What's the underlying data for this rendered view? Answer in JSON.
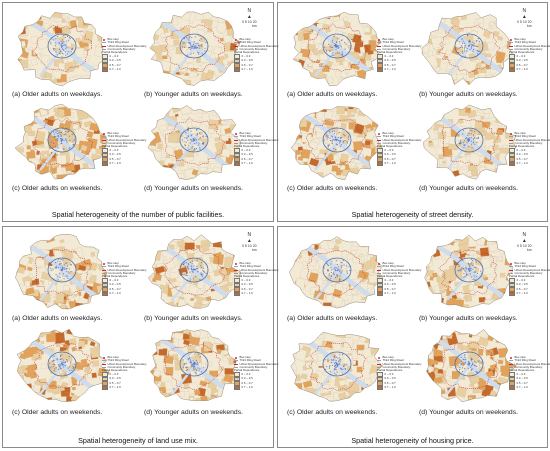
{
  "figures": [
    {
      "caption": "Spatial heterogeneity of the number of public facilities.",
      "panels": [
        {
          "label": "(a)  Older adults on weekdays.",
          "tone": "light"
        },
        {
          "label": "(b)  Younger adults on weekdays.",
          "tone": "light"
        },
        {
          "label": "(c)  Older adults on weekends.",
          "tone": "heavy"
        },
        {
          "label": "(d)  Younger adults on weekends.",
          "tone": "light"
        }
      ]
    },
    {
      "caption": "Spatial heterogeneity of street density.",
      "panels": [
        {
          "label": "(a)  Older adults on weekdays.",
          "tone": "medium"
        },
        {
          "label": "(b)  Younger adults on weekdays.",
          "tone": "light"
        },
        {
          "label": "(c)  Older adults on weekends.",
          "tone": "medium"
        },
        {
          "label": "(d)  Younger adults on weekends.",
          "tone": "light"
        }
      ]
    },
    {
      "caption": "Spatial  heterogeneity of land use mix.",
      "panels": [
        {
          "label": "(a)  Older adults on weekdays.",
          "tone": "medium"
        },
        {
          "label": "(b)  Younger adults on weekdays.",
          "tone": "light"
        },
        {
          "label": "(c)  Older adults on weekends.",
          "tone": "heavy"
        },
        {
          "label": "(d)  Younger adults on weekends.",
          "tone": "medium"
        }
      ]
    },
    {
      "caption": "Spatial  heterogeneity of housing price.",
      "panels": [
        {
          "label": "(a)  Older adults on weekdays.",
          "tone": "light"
        },
        {
          "label": "(b)  Younger adults on weekdays.",
          "tone": "medium"
        },
        {
          "label": "(c)  Older adults on weekends.",
          "tone": "light"
        },
        {
          "label": "(d)  Younger adults on weekends.",
          "tone": "heavy"
        }
      ]
    }
  ],
  "legend": {
    "bus_stop": "Bus stop",
    "third_ring": "Third Ring Road",
    "udb": "Urban Development Boundary",
    "community": "Community Boundary",
    "title": "Partial Dependence",
    "classes": [
      "0 – 0.3",
      "0.3 – 0.5",
      "0.5 – 0.7",
      "0.7 – 1.0"
    ]
  },
  "compass": {
    "north": "N",
    "scale": "0 5 10   20",
    "unit": "km"
  },
  "colors": {
    "c1": "#f3ead6",
    "c2": "#e9cfa0",
    "c3": "#e2a25a",
    "c4": "#c66a2c",
    "water": "#cfdcec",
    "udb": "#c0292b",
    "ring": "#4a6fb3",
    "accent": "#d12a2a"
  }
}
